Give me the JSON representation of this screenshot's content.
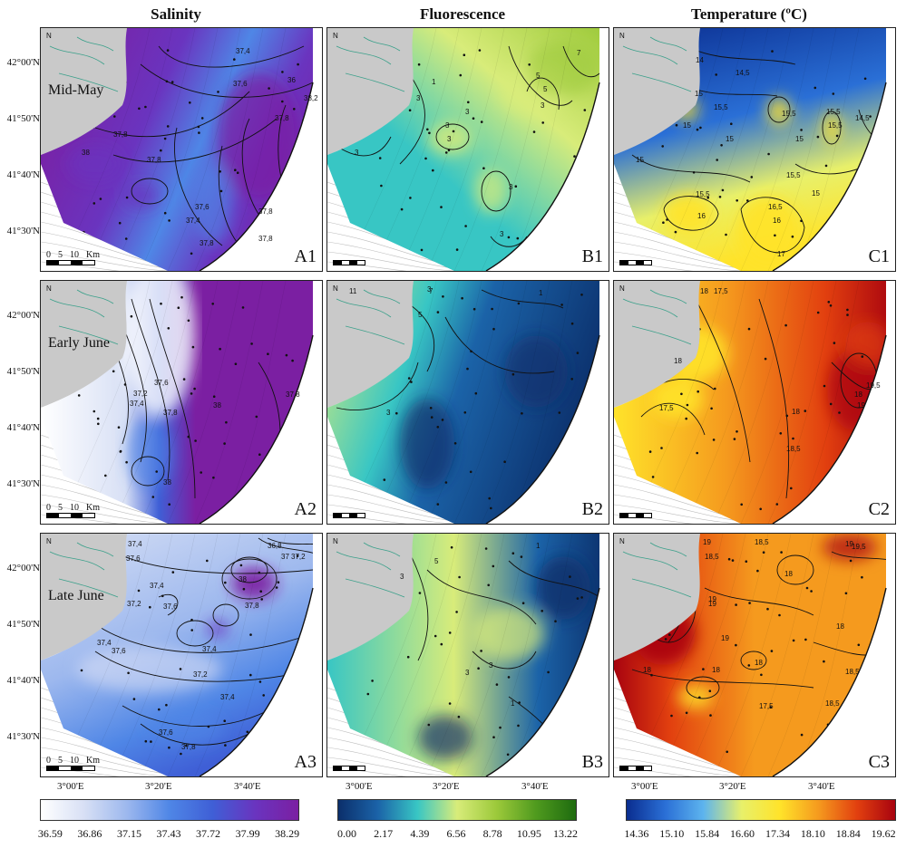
{
  "columns": {
    "salinity": "Salinity",
    "fluorescence": "Fluorescence",
    "temperature": "Temperature (ºC)"
  },
  "periods": [
    "Mid-May",
    "Early June",
    "Late June"
  ],
  "panel_labels": {
    "A1": "A1",
    "B1": "B1",
    "C1": "C1",
    "A2": "A2",
    "B2": "B2",
    "C2": "C2",
    "A3": "A3",
    "B3": "B3",
    "C3": "C3"
  },
  "lat_labels": [
    "42°00'N",
    "41°50'N",
    "41°40'N",
    "41°30'N"
  ],
  "lon_labels": [
    "3°00'E",
    "3°20'E",
    "3°40'E"
  ],
  "north_symbol": "N",
  "scale_bar": {
    "ticks": [
      "0",
      "5",
      "10"
    ],
    "unit": "Km"
  },
  "colorbars": {
    "salinity": {
      "ticks": [
        "36.59",
        "36.86",
        "37.15",
        "37.43",
        "37.72",
        "37.99",
        "38.29"
      ],
      "colors": [
        "#ffffff",
        "#d8e0f5",
        "#9db8ee",
        "#4f86e6",
        "#3f5fd6",
        "#6a34bf",
        "#7b1fa2"
      ]
    },
    "fluorescence": {
      "ticks": [
        "0.00",
        "2.17",
        "4.39",
        "6.56",
        "8.78",
        "10.95",
        "13.22"
      ],
      "colors": [
        "#0b2f6b",
        "#1b63a8",
        "#38c6c4",
        "#d8ec7a",
        "#9cc93a",
        "#4f9a1e",
        "#1e6b0f"
      ]
    },
    "temperature": {
      "ticks": [
        "14.36",
        "15.10",
        "15.84",
        "16.60",
        "17.34",
        "18.10",
        "18.84",
        "19.62"
      ],
      "colors": [
        "#0a2d8f",
        "#2a6fd6",
        "#5db4ee",
        "#e8f06a",
        "#ffe32a",
        "#f59a1e",
        "#e2400f",
        "#a8030f"
      ]
    }
  },
  "contours": {
    "A1": [
      "37,4",
      "37,6",
      "36",
      "38,2",
      "37,8",
      "37,8",
      "37,8",
      "37,6",
      "37,4",
      "37,8",
      "37,8",
      "37,8",
      "38"
    ],
    "B1": [
      "1",
      "3",
      "3",
      "3",
      "5",
      "3",
      "3",
      "3",
      "3",
      "5",
      "7",
      "3"
    ],
    "C1": [
      "14",
      "14,5",
      "15,5",
      "15",
      "15",
      "15,5",
      "15,5",
      "15",
      "15",
      "15,5",
      "16",
      "16,5",
      "16",
      "17",
      "15,5",
      "15",
      "15",
      "15,5",
      "14,5"
    ],
    "A2": [
      "37,2",
      "37,4",
      "37,6",
      "37,8",
      "38",
      "37,8",
      "38"
    ],
    "B2": [
      "11",
      "7",
      "5",
      "3",
      "1",
      "3"
    ],
    "C2": [
      "18",
      "17,5",
      "18",
      "17,5",
      "18",
      "18",
      "18,5",
      "19",
      "19,5"
    ],
    "A3": [
      "37,4",
      "37,6",
      "37,2",
      "37,4",
      "37,6",
      "38",
      "37,8",
      "36,8",
      "37",
      "37,2",
      "37,4",
      "37,6",
      "37,4",
      "37,2",
      "37,4",
      "37,6",
      "37,8"
    ],
    "B3": [
      "5",
      "3",
      "1",
      "3",
      "3",
      "1"
    ],
    "C3": [
      "19",
      "18,5",
      "18,5",
      "18",
      "19",
      "19",
      "19",
      "18",
      "18",
      "18",
      "17,5",
      "18",
      "18,5",
      "18,5",
      "19,5",
      "19"
    ]
  }
}
